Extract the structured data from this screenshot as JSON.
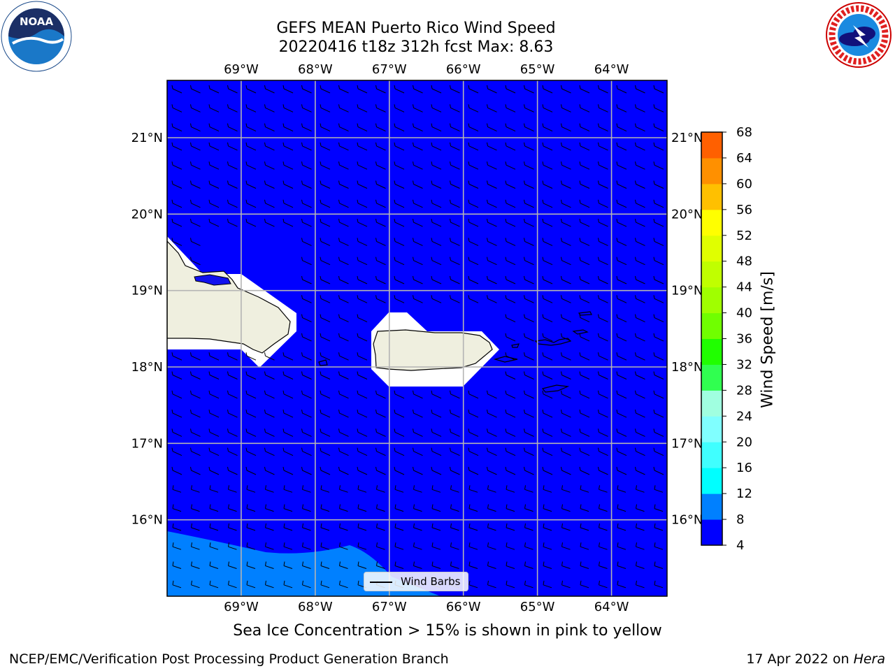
{
  "title_line1": "GEFS MEAN Puerto Rico Wind Speed",
  "title_line2": "20220416 t18z 312h fcst   Max: 8.63",
  "lon_labels": [
    "69°W",
    "68°W",
    "67°W",
    "66°W",
    "65°W",
    "64°W"
  ],
  "lat_labels": [
    "21°N",
    "20°N",
    "19°N",
    "18°N",
    "17°N",
    "16°N"
  ],
  "lon_values": [
    -69,
    -68,
    -67,
    -66,
    -65,
    -64
  ],
  "lat_values": [
    21,
    20,
    19,
    18,
    17,
    16
  ],
  "map_extent": {
    "lon_min": -70,
    "lon_max": -63.25,
    "lat_min": 15,
    "lat_max": 21.75
  },
  "colorbar": {
    "label": "Wind Speed [m/s]",
    "ticks": [
      "68",
      "64",
      "60",
      "56",
      "52",
      "48",
      "44",
      "40",
      "36",
      "32",
      "28",
      "24",
      "20",
      "16",
      "12",
      "8",
      "4"
    ],
    "colors": [
      "#0000ff",
      "#0080ff",
      "#00ffff",
      "#40ffff",
      "#80ffff",
      "#a0ffe0",
      "#30ff50",
      "#20ff00",
      "#70ff00",
      "#a0ff00",
      "#c0ff00",
      "#e0ff00",
      "#ffff00",
      "#ffc000",
      "#ff9000",
      "#ff6000",
      "#ff3000",
      "#ff0000"
    ]
  },
  "field_colors": {
    "ocean": "#0000ff",
    "band_8_12": "#0080ff",
    "land": "#efefdf",
    "masked": "#ffffff"
  },
  "legend_label": "Wind Barbs",
  "sea_ice_note": "Sea Ice Concentration > 15% is shown in pink to yellow",
  "footer_left": "NCEP/EMC/Verification Post Processing Product Generation Branch",
  "footer_date": "17 Apr 2022 on",
  "footer_machine": "Hera",
  "logos": {
    "left": "noaa-logo",
    "right": "nws-logo"
  }
}
